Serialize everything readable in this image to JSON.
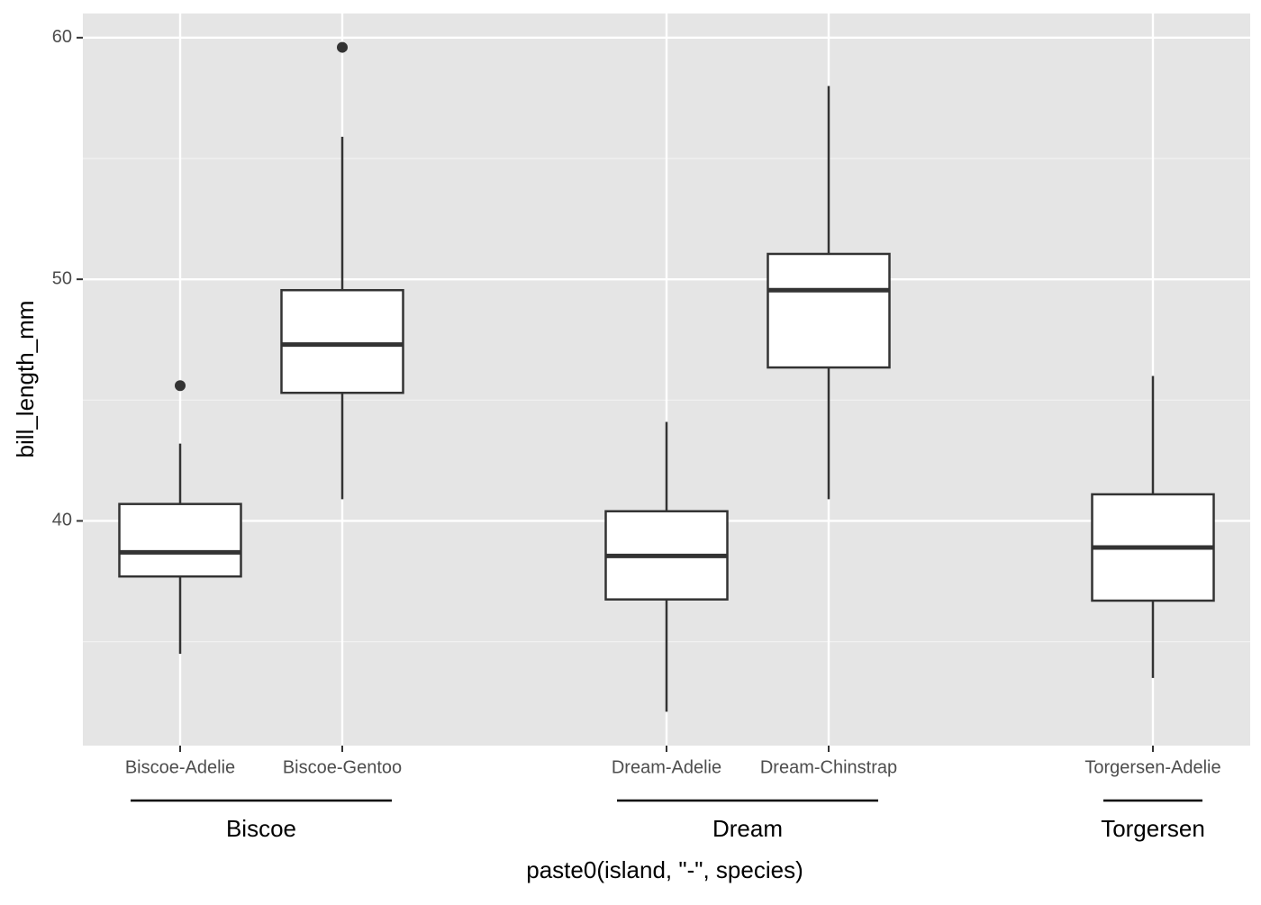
{
  "chart_data": {
    "type": "box",
    "x_label": "paste0(island, \"-\", species)",
    "y_label": "bill_length_mm",
    "categories": [
      "Biscoe-Adelie",
      "Biscoe-Gentoo",
      null,
      "Dream-Adelie",
      "Dream-Chinstrap",
      null,
      "Torgersen-Adelie"
    ],
    "whisker_low": [
      34.5,
      40.9,
      null,
      32.1,
      40.9,
      null,
      33.5
    ],
    "q1": [
      37.7,
      45.3,
      null,
      36.75,
      46.35,
      null,
      36.7
    ],
    "median": [
      38.7,
      47.3,
      null,
      38.55,
      49.55,
      null,
      38.9
    ],
    "q3": [
      40.7,
      49.55,
      null,
      40.4,
      51.05,
      null,
      41.1
    ],
    "whisker_high": [
      43.2,
      55.9,
      null,
      44.1,
      58.0,
      null,
      46.0
    ],
    "outliers": [
      [
        45.6
      ],
      [
        59.6
      ],
      null,
      [],
      [],
      null,
      []
    ],
    "groups": [
      {
        "name": "Biscoe",
        "members": [
          "Biscoe-Adelie",
          "Biscoe-Gentoo"
        ]
      },
      {
        "name": "Dream",
        "members": [
          "Dream-Adelie",
          "Dream-Chinstrap"
        ]
      },
      {
        "name": "Torgersen",
        "members": [
          "Torgersen-Adelie"
        ]
      }
    ],
    "ylim": [
      30.7,
      61.0
    ],
    "yticks": [
      40,
      50,
      60
    ],
    "y_minor_ticks": [
      35,
      45,
      55
    ],
    "grid": true,
    "box_fill": "#ffffff",
    "line_color": "#333333",
    "panel_color": "#e5e5e5"
  }
}
